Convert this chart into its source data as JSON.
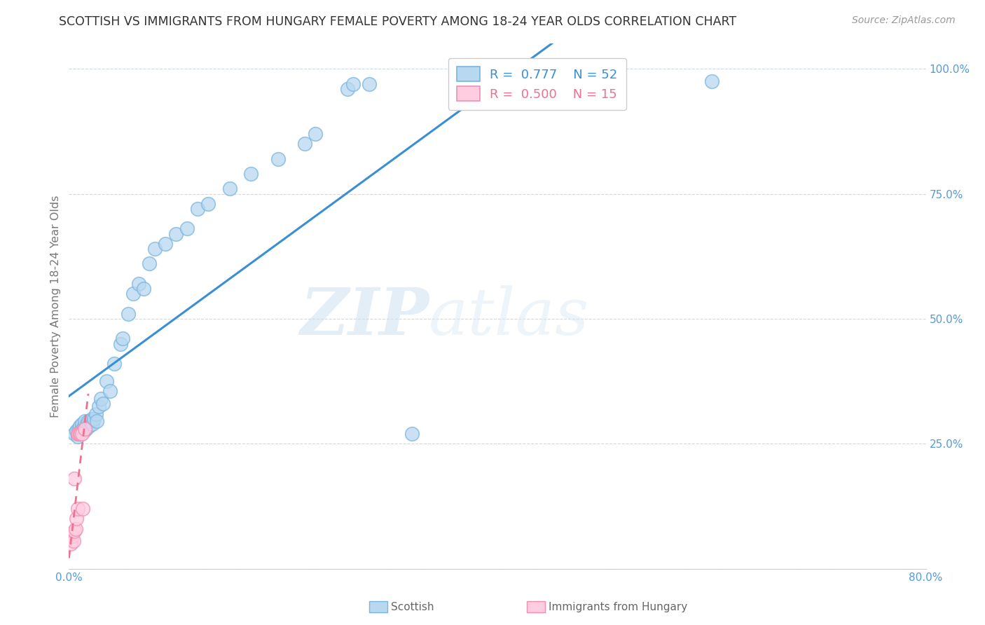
{
  "title": "SCOTTISH VS IMMIGRANTS FROM HUNGARY FEMALE POVERTY AMONG 18-24 YEAR OLDS CORRELATION CHART",
  "source": "Source: ZipAtlas.com",
  "ylabel": "Female Poverty Among 18-24 Year Olds",
  "xlim": [
    0.0,
    0.8
  ],
  "ylim": [
    0.0,
    1.05
  ],
  "watermark_zip": "ZIP",
  "watermark_atlas": "atlas",
  "blue_face": "#b8d8f0",
  "blue_edge": "#7ab5e0",
  "pink_face": "#ffcce0",
  "pink_edge": "#f090b0",
  "blue_line": "#3a8fd4",
  "pink_line": "#f07090",
  "title_color": "#333333",
  "axis_tick_color": "#5599dd",
  "grid_color": "#d0d8e8",
  "source_color": "#999999",
  "ylabel_color": "#777777",
  "scottish_x": [
    0.005,
    0.007,
    0.008,
    0.009,
    0.01,
    0.01,
    0.011,
    0.012,
    0.013,
    0.014,
    0.015,
    0.015,
    0.016,
    0.017,
    0.018,
    0.019,
    0.02,
    0.021,
    0.022,
    0.023,
    0.025,
    0.026,
    0.028,
    0.03,
    0.032,
    0.035,
    0.038,
    0.042,
    0.048,
    0.05,
    0.055,
    0.06,
    0.065,
    0.07,
    0.075,
    0.08,
    0.09,
    0.1,
    0.11,
    0.12,
    0.13,
    0.15,
    0.17,
    0.195,
    0.22,
    0.23,
    0.26,
    0.265,
    0.28,
    0.32,
    0.49,
    0.6
  ],
  "scottish_y": [
    0.27,
    0.275,
    0.265,
    0.28,
    0.27,
    0.285,
    0.275,
    0.29,
    0.28,
    0.275,
    0.285,
    0.295,
    0.28,
    0.29,
    0.295,
    0.285,
    0.295,
    0.3,
    0.29,
    0.3,
    0.31,
    0.295,
    0.325,
    0.34,
    0.33,
    0.375,
    0.355,
    0.41,
    0.45,
    0.46,
    0.51,
    0.55,
    0.57,
    0.56,
    0.61,
    0.64,
    0.65,
    0.67,
    0.68,
    0.72,
    0.73,
    0.76,
    0.79,
    0.82,
    0.85,
    0.87,
    0.96,
    0.97,
    0.97,
    0.27,
    0.97,
    0.975
  ],
  "hungary_x": [
    0.002,
    0.003,
    0.004,
    0.005,
    0.005,
    0.006,
    0.007,
    0.008,
    0.008,
    0.009,
    0.01,
    0.011,
    0.012,
    0.013,
    0.015
  ],
  "hungary_y": [
    0.05,
    0.065,
    0.055,
    0.075,
    0.18,
    0.08,
    0.1,
    0.12,
    0.27,
    0.27,
    0.27,
    0.27,
    0.27,
    0.12,
    0.28
  ]
}
